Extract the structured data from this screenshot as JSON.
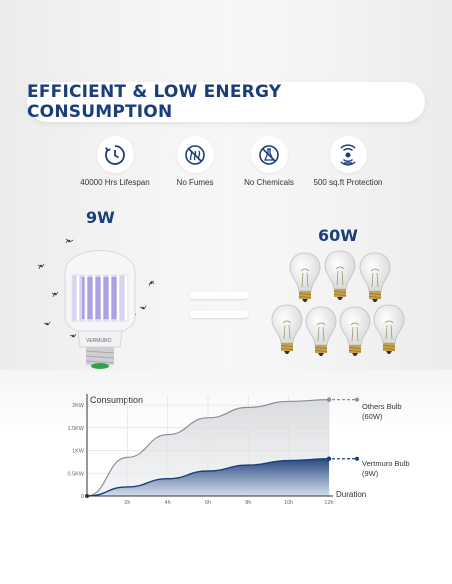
{
  "banner": {
    "title": "EFFICIENT & LOW ENERGY CONSUMPTION"
  },
  "features": [
    {
      "label": "40000 Hrs Lifespan",
      "icon": "clock-icon"
    },
    {
      "label": "No Fumes",
      "icon": "no-fumes-icon"
    },
    {
      "label": "No Chemicals",
      "icon": "no-chemicals-icon"
    },
    {
      "label": "500 sq.ft Protection",
      "icon": "protection-radius-icon"
    }
  ],
  "comparison": {
    "left_watt": "9W",
    "right_watt": "60W",
    "bulb_brand_text": "VERMURO"
  },
  "chart": {
    "title": "Consumption",
    "duration_label": "Duration",
    "accent_color": "#1b3e7a",
    "others_color": "#8a8f96"
  },
  "chart_data": {
    "type": "area",
    "title": "",
    "ylabel": "Consumption",
    "xlabel": "Duration",
    "x": [
      "0",
      "2h",
      "4h",
      "6h",
      "8h",
      "10h",
      "12h"
    ],
    "y_ticks": [
      "0",
      "0.5KW",
      "1KW",
      "1.5KW",
      "2KW"
    ],
    "ylim": [
      0,
      2.2
    ],
    "grid": true,
    "series": [
      {
        "name": "Others Bulb (60W)",
        "line1": "Others Bulb",
        "line2": "(60W)",
        "values": [
          0,
          0.85,
          1.35,
          1.72,
          1.95,
          2.08,
          2.12
        ]
      },
      {
        "name": "Vertmuro Bulb (9W)",
        "line1": "Vertmuro Bulb",
        "line2": "(9W)",
        "values": [
          0,
          0.2,
          0.38,
          0.55,
          0.68,
          0.78,
          0.82
        ]
      }
    ]
  }
}
